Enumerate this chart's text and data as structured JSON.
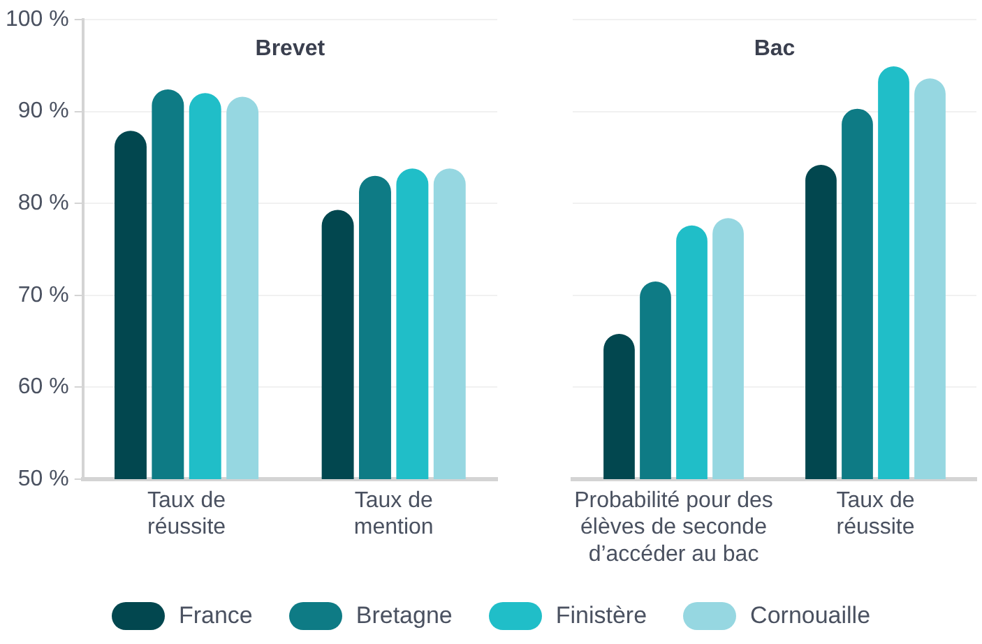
{
  "chart_data": [
    {
      "type": "bar",
      "title": "Brevet",
      "categories": [
        "Taux de réussite",
        "Taux de mention"
      ],
      "series": [
        {
          "name": "France",
          "color": "#02474f",
          "values": [
            87.9,
            79.3
          ]
        },
        {
          "name": "Bretagne",
          "color": "#0e7b85",
          "values": [
            92.4,
            83
          ]
        },
        {
          "name": "Finistère",
          "color": "#20bec8",
          "values": [
            92,
            83.8
          ]
        },
        {
          "name": "Cornouaille",
          "color": "#96d7e1",
          "values": [
            91.6,
            83.8
          ]
        }
      ],
      "ylim": [
        50,
        100
      ],
      "yticks": [
        {
          "value": 50,
          "label": "50 %"
        },
        {
          "value": 60,
          "label": "60 %"
        },
        {
          "value": 70,
          "label": "70 %"
        },
        {
          "value": 80,
          "label": "80 %"
        },
        {
          "value": 90,
          "label": "90 %"
        },
        {
          "value": 100,
          "label": "100 %"
        }
      ],
      "grid": "y",
      "legend": "bottom"
    },
    {
      "type": "bar",
      "title": "Bac",
      "categories": [
        "Probabilité pour des élèves de seconde d’accéder au bac",
        "Taux de réussite"
      ],
      "series": [
        {
          "color": "#02474f",
          "values": [
            65.8,
            84.2
          ]
        },
        {
          "color": "#0e7b85",
          "values": [
            71.5,
            90.3
          ]
        },
        {
          "color": "#20bec8",
          "values": [
            77.6,
            94.9
          ]
        },
        {
          "color": "#96d7e1",
          "values": [
            78.4,
            93.6
          ]
        }
      ],
      "ylim": [
        50,
        100
      ],
      "yticks": [
        50,
        60,
        70,
        80,
        90,
        100
      ],
      "grid": "y",
      "tick_labels": "x"
    }
  ]
}
